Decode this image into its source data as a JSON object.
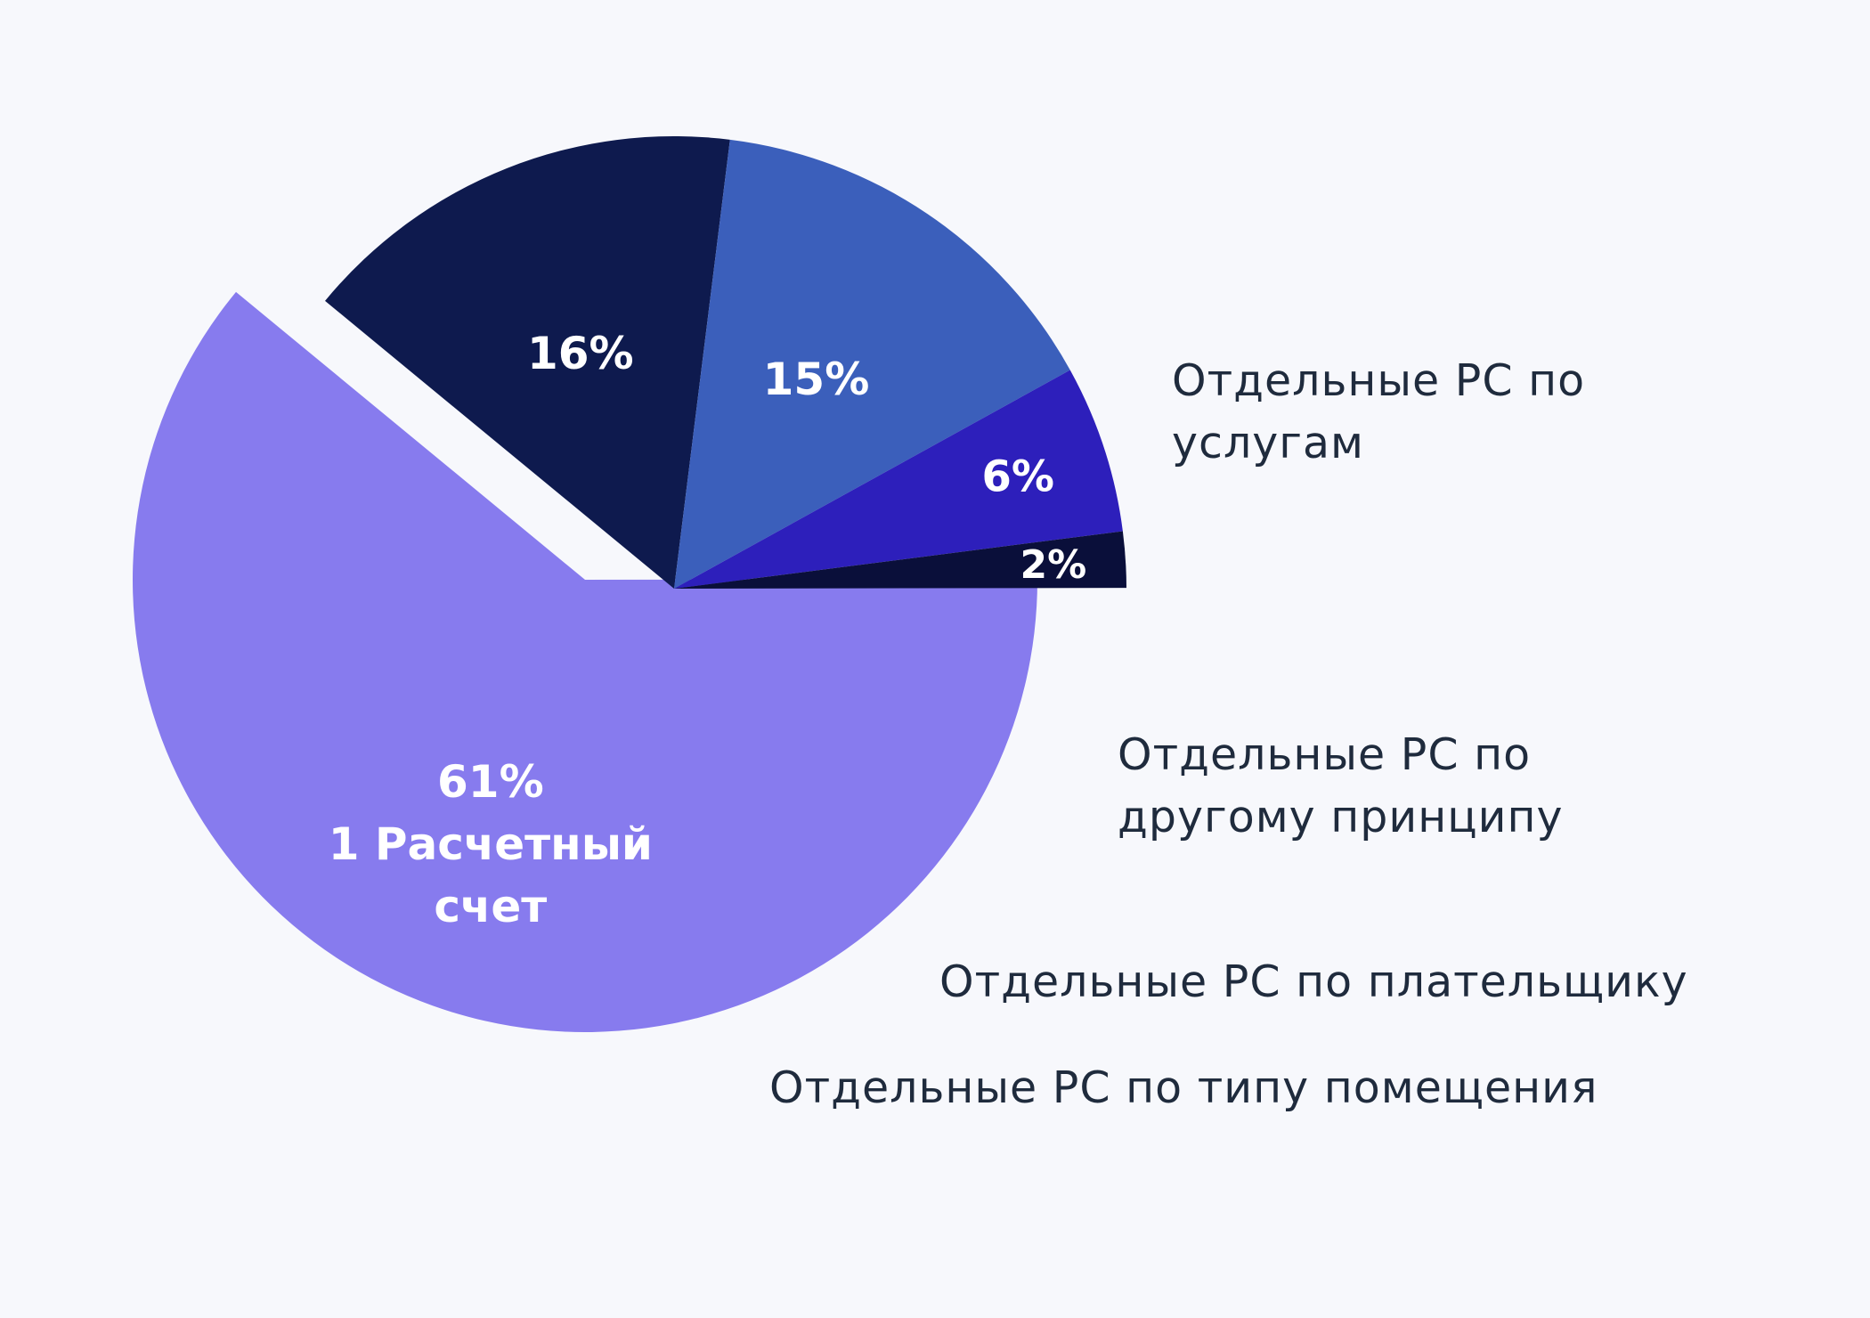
{
  "chart_data": {
    "type": "pie",
    "slices": [
      {
        "name": "1 Расчетный счет",
        "value": 61,
        "label": "61%",
        "caption": [
          "1 Расчетный",
          "счет"
        ],
        "color": "#877bee"
      },
      {
        "name": "Отдельные РС по услугам",
        "value": 16,
        "label": "16%",
        "legend": "Отдельные РС по услугам",
        "color": "#0e1a4e"
      },
      {
        "name": "Отдельные РС по другому принципу",
        "value": 15,
        "label": "15%",
        "legend": "Отдельные РС по другому принципу",
        "color": "#3b5fbb"
      },
      {
        "name": "Отдельные РС по плательщику",
        "value": 6,
        "label": "6%",
        "legend": "Отдельные РС по плательщику",
        "color": "#2d1fbb"
      },
      {
        "name": "Отдельные РС по типу помещения",
        "value": 2,
        "label": "2%",
        "legend": "Отдельные РС по типу помещения",
        "color": "#0a0f3a"
      }
    ]
  },
  "legend": [
    {
      "line1": "Отдельные РС по",
      "line2": "услугам"
    },
    {
      "line1": "Отдельные РС по",
      "line2": "другому принципу"
    },
    {
      "line1": "Отдельные РС по плательщику",
      "line2": ""
    },
    {
      "line1": "Отдельные РС по типу помещения",
      "line2": ""
    }
  ]
}
